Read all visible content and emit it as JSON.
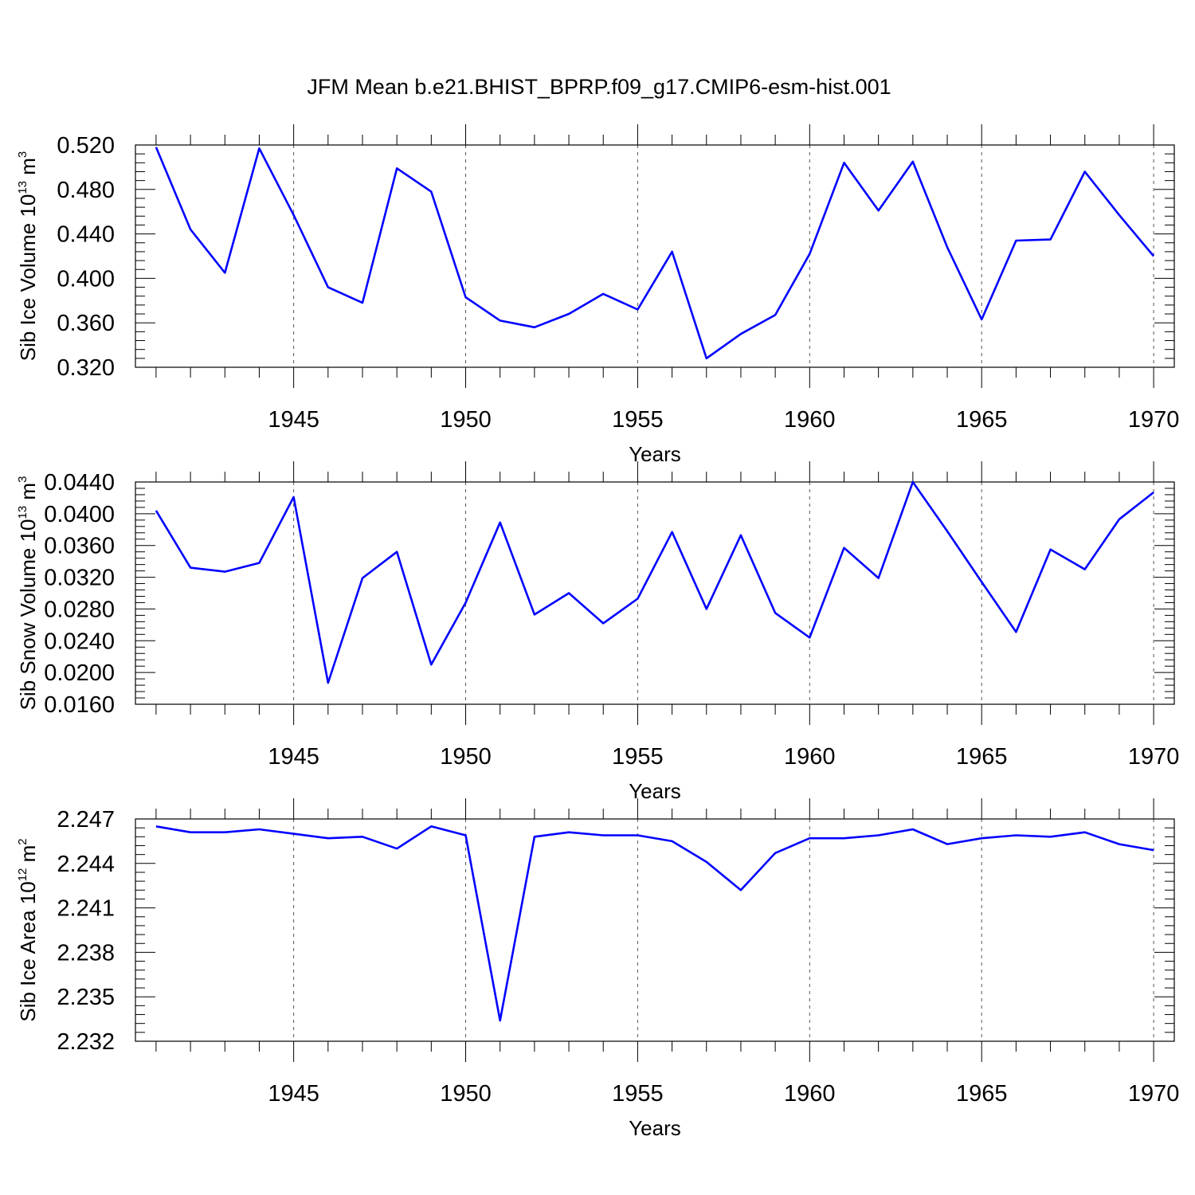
{
  "title": "JFM Mean b.e21.BHIST_BPRP.f09_g17.CMIP6-esm-hist.001",
  "colors": {
    "line": "#0000ff",
    "axis": "#000000",
    "grid": "#555555"
  },
  "chart_data": [
    {
      "type": "line",
      "xlabel": "Years",
      "ylabel": "Sib Ice Volume 10",
      "ylabel_exp": "13",
      "ylabel_unit": " m",
      "ylabel_unit_exp": "3",
      "xlim": [
        1940.4,
        1970.6
      ],
      "ylim": [
        0.32,
        0.52
      ],
      "yticks": [
        0.32,
        0.36,
        0.4,
        0.44,
        0.48,
        0.52
      ],
      "ytick_labels": [
        "0.320",
        "0.360",
        "0.400",
        "0.440",
        "0.480",
        "0.520"
      ],
      "xticks": [
        1945,
        1950,
        1955,
        1960,
        1965,
        1970
      ],
      "xtick_labels": [
        "1945",
        "1950",
        "1955",
        "1960",
        "1965",
        "1970"
      ],
      "x": [
        1941,
        1942,
        1943,
        1944,
        1945,
        1946,
        1947,
        1948,
        1949,
        1950,
        1951,
        1952,
        1953,
        1954,
        1955,
        1956,
        1957,
        1958,
        1959,
        1960,
        1961,
        1962,
        1963,
        1964,
        1965,
        1966,
        1967,
        1968,
        1969,
        1970
      ],
      "series": [
        {
          "values": [
            0.518,
            0.444,
            0.405,
            0.517,
            0.457,
            0.392,
            0.378,
            0.499,
            0.478,
            0.383,
            0.362,
            0.356,
            0.368,
            0.386,
            0.372,
            0.424,
            0.328,
            0.35,
            0.367,
            0.422,
            0.504,
            0.461,
            0.505,
            0.428,
            0.363,
            0.434,
            0.435,
            0.496,
            0.457,
            0.42
          ]
        }
      ],
      "grid": "dashed vertical at major x ticks"
    },
    {
      "type": "line",
      "xlabel": "Years",
      "ylabel": "Sib Snow Volume 10",
      "ylabel_exp": "13",
      "ylabel_unit": " m",
      "ylabel_unit_exp": "3",
      "xlim": [
        1940.4,
        1970.6
      ],
      "ylim": [
        0.016,
        0.044
      ],
      "yticks": [
        0.016,
        0.02,
        0.024,
        0.028,
        0.032,
        0.036,
        0.04,
        0.044
      ],
      "ytick_labels": [
        "0.0160",
        "0.0200",
        "0.0240",
        "0.0280",
        "0.0320",
        "0.0360",
        "0.0400",
        "0.0440"
      ],
      "xticks": [
        1945,
        1950,
        1955,
        1960,
        1965,
        1970
      ],
      "xtick_labels": [
        "1945",
        "1950",
        "1955",
        "1960",
        "1965",
        "1970"
      ],
      "x": [
        1941,
        1942,
        1943,
        1944,
        1945,
        1946,
        1947,
        1948,
        1949,
        1950,
        1951,
        1952,
        1953,
        1954,
        1955,
        1956,
        1957,
        1958,
        1959,
        1960,
        1961,
        1962,
        1963,
        1964,
        1965,
        1966,
        1967,
        1968,
        1969,
        1970
      ],
      "series": [
        {
          "values": [
            0.0404,
            0.0332,
            0.0327,
            0.0338,
            0.0421,
            0.0187,
            0.0319,
            0.0352,
            0.021,
            0.0288,
            0.0389,
            0.0273,
            0.03,
            0.0262,
            0.0293,
            0.0377,
            0.028,
            0.0373,
            0.0275,
            0.0244,
            0.0357,
            0.0319,
            0.044,
            0.0378,
            0.0314,
            0.0251,
            0.0355,
            0.033,
            0.0393,
            0.0427
          ]
        }
      ],
      "grid": "dashed vertical at major x ticks"
    },
    {
      "type": "line",
      "xlabel": "Years",
      "ylabel": "Sib Ice Area 10",
      "ylabel_exp": "12",
      "ylabel_unit": " m",
      "ylabel_unit_exp": "2",
      "xlim": [
        1940.4,
        1970.6
      ],
      "ylim": [
        2.232,
        2.247
      ],
      "yticks": [
        2.232,
        2.235,
        2.238,
        2.241,
        2.244,
        2.247
      ],
      "ytick_labels": [
        "2.232",
        "2.235",
        "2.238",
        "2.241",
        "2.244",
        "2.247"
      ],
      "xticks": [
        1945,
        1950,
        1955,
        1960,
        1965,
        1970
      ],
      "xtick_labels": [
        "1945",
        "1950",
        "1955",
        "1960",
        "1965",
        "1970"
      ],
      "x": [
        1941,
        1942,
        1943,
        1944,
        1945,
        1946,
        1947,
        1948,
        1949,
        1950,
        1951,
        1952,
        1953,
        1954,
        1955,
        1956,
        1957,
        1958,
        1959,
        1960,
        1961,
        1962,
        1963,
        1964,
        1965,
        1966,
        1967,
        1968,
        1969,
        1970
      ],
      "series": [
        {
          "values": [
            2.2465,
            2.2461,
            2.2461,
            2.2463,
            2.246,
            2.2457,
            2.2458,
            2.245,
            2.2465,
            2.2459,
            2.2334,
            2.2458,
            2.2461,
            2.2459,
            2.2459,
            2.2455,
            2.2441,
            2.2422,
            2.2447,
            2.2457,
            2.2457,
            2.2459,
            2.2463,
            2.2453,
            2.2457,
            2.2459,
            2.2458,
            2.2461,
            2.2453,
            2.2449
          ]
        }
      ],
      "grid": "dashed vertical at major x ticks"
    }
  ]
}
